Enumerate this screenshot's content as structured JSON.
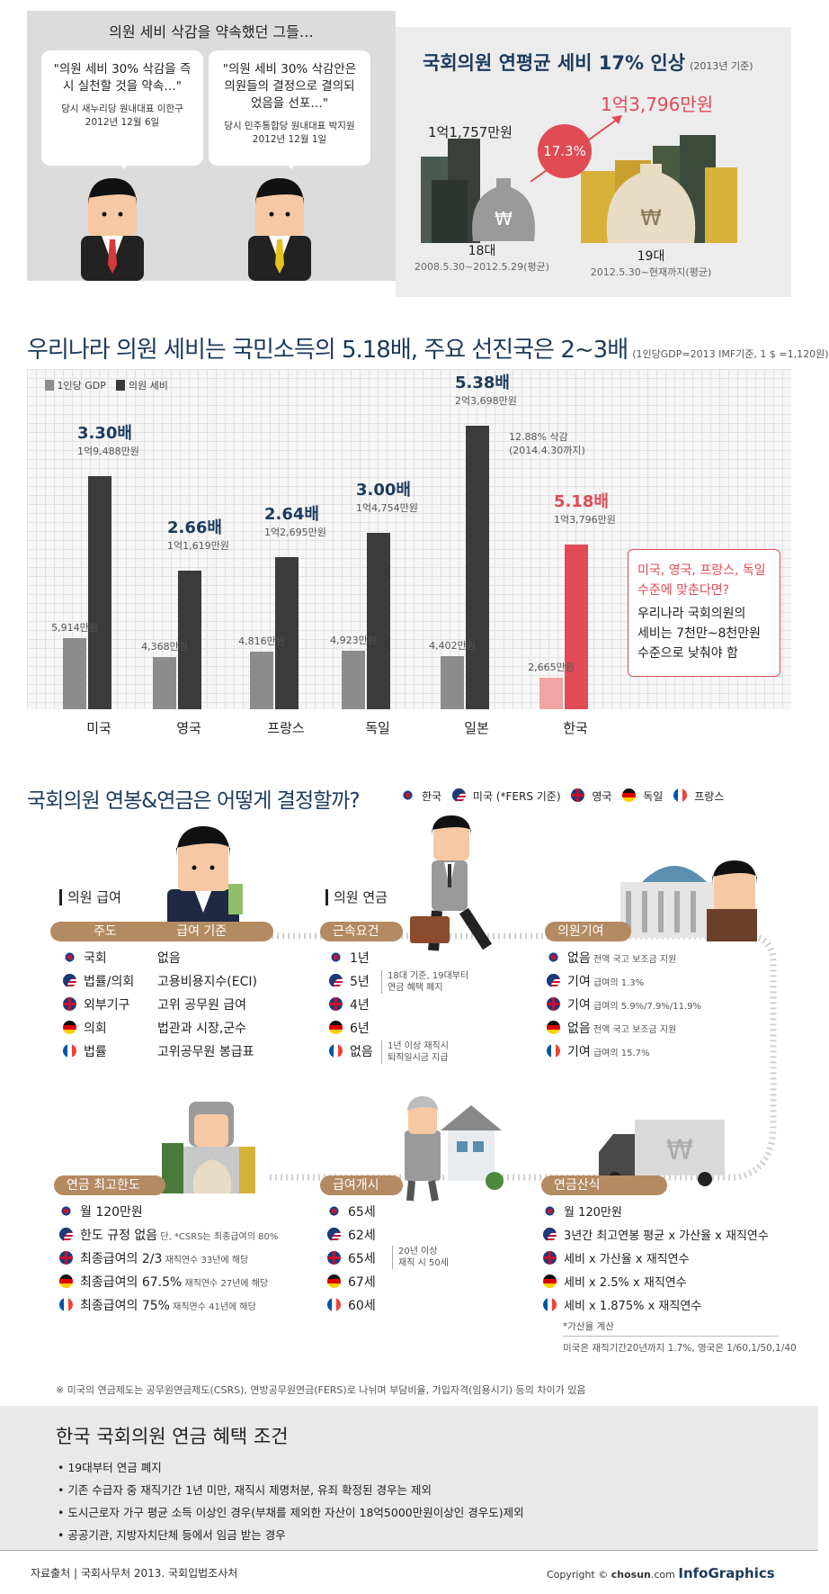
{
  "section1": {
    "left_title": "의원 세비 삭감을 약속했던 그들…",
    "quotes": [
      {
        "quote": "\"의원 세비 30% 삭감을 즉시 실천할 것을 약속…\"",
        "who": "당시 새누리당 원내대표 이한구",
        "date": "2012년 12월 6일",
        "tie_color": "#d63a3a"
      },
      {
        "quote": "\"의원 세비 30% 삭감안은 의원들의 결정으로 결의되었음을 선포…\"",
        "who": "당시 민주통합당 원내대표 박지원",
        "date": "2012년 12월 1일",
        "tie_color": "#e5c21e"
      }
    ],
    "right_title": "국회의원 연평균 세비 17% 인상",
    "right_title_note": "(2013년 기준)",
    "before": {
      "amount": "1억1,757만원",
      "label": "18대",
      "period": "2008.5.30~2012.5.29(평균)"
    },
    "after": {
      "amount": "1억3,796만원",
      "label": "19대",
      "period": "2012.5.30~현재까지(평균)"
    },
    "increase": "17.3%"
  },
  "section2": {
    "title": "우리나라 의원 세비는 국민소득의 5.18배, 주요 선진국은 2~3배",
    "note": "(1인당GDP=2013 IMF기준, 1 $ =1,120원)",
    "legend": [
      "1인당 GDP",
      "의원 세비"
    ],
    "callout": {
      "line1": "미국, 영국, 프랑스, 독일",
      "line2": "수준에 맞춘다면?",
      "line3": "우리나라 국회의원의",
      "line4": "세비는 7천만~8천만원",
      "line5": "수준으로 낮춰야 함"
    },
    "japan_note": {
      "line1": "12.88% 삭감",
      "line2": "(2014.4.30까지)"
    }
  },
  "chart_data": {
    "type": "bar",
    "title": "우리나라 의원 세비는 국민소득의 5.18배, 주요 선진국은 2~3배",
    "categories": [
      "미국",
      "영국",
      "프랑스",
      "독일",
      "일본",
      "한국"
    ],
    "series": [
      {
        "name": "1인당 GDP",
        "values": [
          5914,
          4368,
          4816,
          4923,
          4402,
          2665
        ],
        "labels": [
          "5,914만원",
          "4,368만원",
          "4,816만원",
          "4,923만원",
          "4,402만원",
          "2,665만원"
        ]
      },
      {
        "name": "의원 세비",
        "values": [
          19488,
          11619,
          12695,
          14754,
          23698,
          13796
        ],
        "labels": [
          "1억9,488만원",
          "1억1,619만원",
          "1억2,695만원",
          "1억4,754만원",
          "2억3,698만원",
          "1억3,796만원"
        ]
      }
    ],
    "ratios": [
      "3.30배",
      "2.66배",
      "2.64배",
      "3.00배",
      "5.38배",
      "5.18배"
    ],
    "colors": {
      "gdp": "#8c8c8c",
      "salary": "#3b3b3b",
      "kr_gdp": "#f0a4a4",
      "kr_salary": "#e04b54"
    }
  },
  "section3": {
    "title": "국회의원 연봉&연금은 어떻게 결정할까?",
    "legend": [
      {
        "flag": "kr",
        "label": "한국"
      },
      {
        "flag": "us",
        "label": "미국 (*FERS 기준)"
      },
      {
        "flag": "uk",
        "label": "영국"
      },
      {
        "flag": "de",
        "label": "독일"
      },
      {
        "flag": "fr",
        "label": "프랑스"
      }
    ],
    "salary": {
      "heading": "의원 급여",
      "col1": "주도",
      "col2": "급여 기준",
      "rows": [
        {
          "flag": "kr",
          "a": "국회",
          "b": "없음"
        },
        {
          "flag": "us",
          "a": "법률/의회",
          "b": "고용비용지수(ECI)"
        },
        {
          "flag": "uk",
          "a": "외부기구",
          "b": "고위 공무원 급여"
        },
        {
          "flag": "de",
          "a": "의회",
          "b": "법관과 시장,군수"
        },
        {
          "flag": "fr",
          "a": "법률",
          "b": "고위공무원 봉급표"
        }
      ]
    },
    "pension": {
      "heading": "의원 연금",
      "pill": "근속요건",
      "rows": [
        {
          "flag": "kr",
          "v": "1년"
        },
        {
          "flag": "us",
          "v": "5년"
        },
        {
          "flag": "uk",
          "v": "4년"
        },
        {
          "flag": "de",
          "v": "6년"
        },
        {
          "flag": "fr",
          "v": "없음"
        }
      ],
      "note_kr": {
        "line1": "18대 기준, 19대부터",
        "line2": "연금 혜택 폐지"
      },
      "note_fr": {
        "line1": "1년 이상 재직시",
        "line2": "퇴직일시금 지급"
      }
    },
    "contribution": {
      "pill": "의원기여",
      "rows": [
        {
          "flag": "kr",
          "v": "없음",
          "n": "전액 국고 보조금 지원"
        },
        {
          "flag": "us",
          "v": "기여",
          "n": "급여의 1.3%"
        },
        {
          "flag": "uk",
          "v": "기여",
          "n": "급여의 5.9%/7.9%/11.9%"
        },
        {
          "flag": "de",
          "v": "없음",
          "n": "전액 국고 보조금 지원"
        },
        {
          "flag": "fr",
          "v": "기여",
          "n": "급여의 15.7%"
        }
      ]
    },
    "max": {
      "pill": "연금 최고한도",
      "rows": [
        {
          "flag": "kr",
          "v": "월 120만원",
          "n": ""
        },
        {
          "flag": "us",
          "v": "한도 규정 없음",
          "n": "단, *CSRS는 최종급여의 80%"
        },
        {
          "flag": "uk",
          "v": "최종급여의 2/3",
          "n": "재직연수 33년에 해당"
        },
        {
          "flag": "de",
          "v": "최종급여의 67.5%",
          "n": "재직연수 27년에 해당"
        },
        {
          "flag": "fr",
          "v": "최종급여의 75%",
          "n": "재직연수 41년에 해당"
        }
      ]
    },
    "start": {
      "pill": "급여개시",
      "rows": [
        {
          "flag": "kr",
          "v": "65세"
        },
        {
          "flag": "us",
          "v": "62세"
        },
        {
          "flag": "uk",
          "v": "65세"
        },
        {
          "flag": "de",
          "v": "67세"
        },
        {
          "flag": "fr",
          "v": "60세"
        }
      ],
      "note": {
        "line1": "20년 이상",
        "line2": "재직 시 50세"
      }
    },
    "calc": {
      "pill": "연금산식",
      "rows": [
        {
          "flag": "kr",
          "v": "월 120만원"
        },
        {
          "flag": "us",
          "v": "3년간 최고연봉 평균 x 가산율 x 재직연수"
        },
        {
          "flag": "uk",
          "v": "세비 x 가산율 x 재직연수"
        },
        {
          "flag": "de",
          "v": "세비 x 2.5% x 재직연수"
        },
        {
          "flag": "fr",
          "v": "세비 x 1.875% x 재직연수"
        }
      ],
      "note_title": "*가산율 계산",
      "note": "미국은 재직기간20년까지 1.7%, 영국은 1/60,1/50,1/40"
    },
    "footnote": "※ 미국의 연금제도는 공무원연금제도(CSRS), 연방공무원연금(FERS)로 나뉘며 부담비율, 가입자격(임용시기) 등의 차이가 있음"
  },
  "section4": {
    "title": "한국 국회의원 연금 혜택 조건",
    "bullets": [
      "19대부터 연금 폐지",
      "기존 수급자 중 재직기간 1년 미만, 재직시 제명처분, 유죄 확정된 경우는 제외",
      "도시근로자 가구 평균 소득 이상인 경우(부채를 제외한 자산이 18억5000만원이상인 경우도)제외",
      "공공기관, 지방자치단체 등에서 임금 받는 경우"
    ]
  },
  "footer": {
    "source": "자료출처 | 국회사무처 2013. 국회입법조사처",
    "copyright": "Copyright ©",
    "brand": "chosun",
    "brand_suffix": ".com",
    "infographics": "InfoGraphics"
  }
}
